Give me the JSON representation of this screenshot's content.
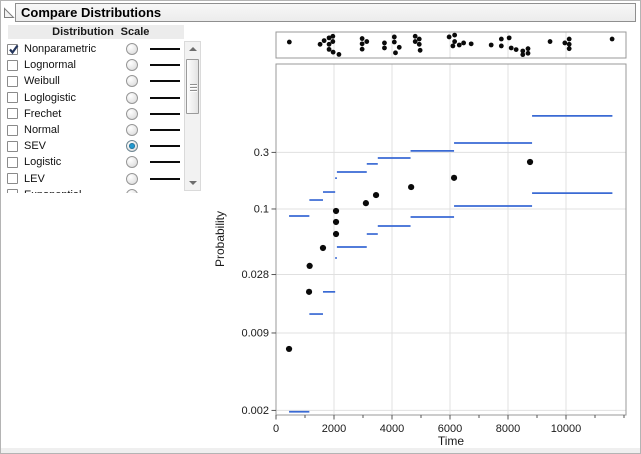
{
  "window": {
    "title": "Compare Distributions"
  },
  "panel": {
    "header": {
      "col1": "Distribution",
      "col2": "Scale"
    },
    "rows": [
      {
        "label": "Nonparametric",
        "checked": true,
        "radio": false
      },
      {
        "label": "Lognormal",
        "checked": false,
        "radio": false
      },
      {
        "label": "Weibull",
        "checked": false,
        "radio": false
      },
      {
        "label": "Loglogistic",
        "checked": false,
        "radio": false
      },
      {
        "label": "Frechet",
        "checked": false,
        "radio": false
      },
      {
        "label": "Normal",
        "checked": false,
        "radio": false
      },
      {
        "label": "SEV",
        "checked": false,
        "radio": true
      },
      {
        "label": "Logistic",
        "checked": false,
        "radio": false
      },
      {
        "label": "LEV",
        "checked": false,
        "radio": false
      },
      {
        "label": "Exponential",
        "checked": false,
        "radio": false
      }
    ]
  },
  "colors": {
    "step_blue": "#3a6ad4",
    "radio_blue": "#1f9ad2",
    "check_navy": "#24365c",
    "grid": "#e0e0e0",
    "frame": "#999999",
    "dot": "#0a0a0a"
  },
  "chart_data": {
    "type": "line",
    "subtype": "nonparametric-probability-plot-with-event-strip",
    "title": "",
    "xlabel": "Time",
    "ylabel": "Probability",
    "x_range": [
      0,
      12069
    ],
    "x_major_ticks": [
      0,
      2000,
      4000,
      6000,
      8000,
      10000
    ],
    "x_minor_step": 1000,
    "x_tick_max": 12000,
    "y_scale": "log",
    "y_ticks": [
      0.002,
      0.009,
      0.028,
      0.1,
      0.3
    ],
    "y_range": [
      0.00183,
      1.67
    ],
    "grid": true,
    "legend": "none",
    "event_strip_dots": [
      [
        460,
        0.37
      ],
      [
        1520,
        0.47
      ],
      [
        1660,
        0.31
      ],
      [
        1830,
        0.19
      ],
      [
        1830,
        0.47
      ],
      [
        1960,
        0.12
      ],
      [
        1960,
        0.35
      ],
      [
        1830,
        0.69
      ],
      [
        1970,
        0.81
      ],
      [
        2170,
        0.91
      ],
      [
        2970,
        0.22
      ],
      [
        2970,
        0.45
      ],
      [
        3130,
        0.35
      ],
      [
        2970,
        0.68
      ],
      [
        3740,
        0.41
      ],
      [
        3740,
        0.63
      ],
      [
        4080,
        0.15
      ],
      [
        4080,
        0.37
      ],
      [
        4250,
        0.6
      ],
      [
        4120,
        0.84
      ],
      [
        4800,
        0.12
      ],
      [
        4800,
        0.35
      ],
      [
        4940,
        0.24
      ],
      [
        4940,
        0.47
      ],
      [
        4970,
        0.73
      ],
      [
        5970,
        0.15
      ],
      [
        6160,
        0.07
      ],
      [
        6160,
        0.35
      ],
      [
        6100,
        0.54
      ],
      [
        6320,
        0.5
      ],
      [
        6470,
        0.41
      ],
      [
        6730,
        0.45
      ],
      [
        7420,
        0.5
      ],
      [
        7770,
        0.24
      ],
      [
        7770,
        0.54
      ],
      [
        8040,
        0.19
      ],
      [
        8110,
        0.63
      ],
      [
        8280,
        0.7
      ],
      [
        8510,
        0.76
      ],
      [
        8510,
        0.92
      ],
      [
        8690,
        0.66
      ],
      [
        8690,
        0.86
      ],
      [
        9450,
        0.35
      ],
      [
        9960,
        0.41
      ],
      [
        10110,
        0.24
      ],
      [
        10110,
        0.47
      ],
      [
        10110,
        0.66
      ],
      [
        11590,
        0.24
      ]
    ],
    "points": [
      [
        450,
        0.0066
      ],
      [
        1140,
        0.02
      ],
      [
        1160,
        0.0331
      ],
      [
        1620,
        0.0469
      ],
      [
        2070,
        0.0615
      ],
      [
        2070,
        0.0777
      ],
      [
        2070,
        0.0962
      ],
      [
        3100,
        0.112
      ],
      [
        3450,
        0.131
      ],
      [
        4660,
        0.153
      ],
      [
        6140,
        0.183
      ],
      [
        8760,
        0.249
      ]
    ],
    "upper_steps": [
      [
        450,
        1150,
        0.0873
      ],
      [
        1150,
        1620,
        0.119
      ],
      [
        1620,
        2040,
        0.139
      ],
      [
        2040,
        2100,
        0.182
      ],
      [
        2100,
        3130,
        0.205
      ],
      [
        3130,
        3510,
        0.24
      ],
      [
        3510,
        4640,
        0.269
      ],
      [
        4640,
        6140,
        0.309
      ],
      [
        6140,
        8830,
        0.36
      ],
      [
        8830,
        11600,
        0.61
      ]
    ],
    "lower_steps": [
      [
        450,
        1150,
        0.00195
      ],
      [
        1150,
        1620,
        0.013
      ],
      [
        1620,
        2040,
        0.02
      ],
      [
        2040,
        2100,
        0.0386
      ],
      [
        2100,
        3130,
        0.0478
      ],
      [
        3130,
        3510,
        0.0615
      ],
      [
        3510,
        4640,
        0.0719
      ],
      [
        4640,
        6140,
        0.0856
      ],
      [
        6140,
        8830,
        0.106
      ],
      [
        8830,
        11600,
        0.136
      ]
    ]
  }
}
